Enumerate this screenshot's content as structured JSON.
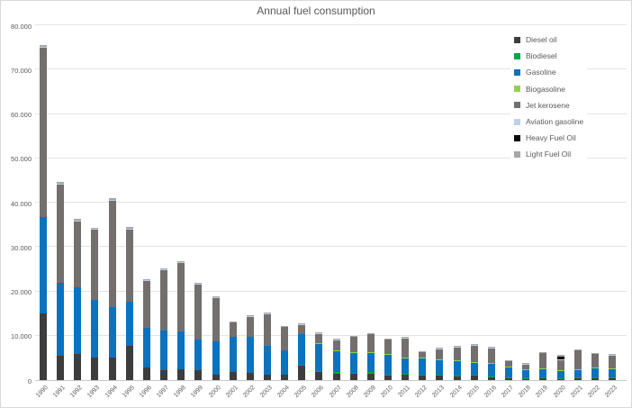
{
  "chart_data": {
    "type": "bar",
    "stacked": true,
    "title": "Annual fuel consumption",
    "xlabel": "",
    "ylabel": "",
    "ylim": [
      0,
      80000
    ],
    "grid": true,
    "legend_position": "top-right-inside",
    "yticks": [
      {
        "label": "0",
        "value": 0
      },
      {
        "label": "10.000",
        "value": 10000
      },
      {
        "label": "20.000",
        "value": 20000
      },
      {
        "label": "30.000",
        "value": 30000
      },
      {
        "label": "40.000",
        "value": 40000
      },
      {
        "label": "50.000",
        "value": 50000
      },
      {
        "label": "60.000",
        "value": 60000
      },
      {
        "label": "70.000",
        "value": 70000
      },
      {
        "label": "80.000",
        "value": 80000
      }
    ],
    "categories": [
      "1990",
      "1991",
      "1992",
      "1993",
      "1994",
      "1995",
      "1996",
      "1997",
      "1998",
      "1999",
      "2000",
      "2001",
      "2002",
      "2003",
      "2004",
      "2005",
      "2006",
      "2007",
      "2008",
      "2009",
      "2010",
      "2011",
      "2012",
      "2013",
      "2014",
      "2015",
      "2016",
      "2017",
      "2018",
      "2019",
      "2020",
      "2021",
      "2022",
      "2023"
    ],
    "series": [
      {
        "name": "Diesel oil",
        "color": "#3d3d3d",
        "values": [
          15000,
          5500,
          5800,
          5100,
          5000,
          7800,
          2800,
          2300,
          2400,
          2200,
          1300,
          1800,
          1700,
          1300,
          1300,
          3300,
          1800,
          1500,
          1400,
          1500,
          1000,
          1200,
          950,
          1000,
          850,
          1000,
          700,
          550,
          400,
          500,
          350,
          600,
          500,
          500
        ]
      },
      {
        "name": "Biodiesel",
        "color": "#00a845",
        "values": [
          0,
          0,
          0,
          0,
          0,
          0,
          0,
          0,
          0,
          0,
          0,
          0,
          0,
          0,
          0,
          200,
          300,
          300,
          300,
          300,
          300,
          200,
          200,
          200,
          200,
          200,
          200,
          150,
          100,
          100,
          100,
          100,
          100,
          100
        ]
      },
      {
        "name": "Gasoline",
        "color": "#0b72be",
        "values": [
          21800,
          16500,
          15200,
          12900,
          11400,
          9900,
          8900,
          8900,
          8600,
          6900,
          7500,
          7900,
          8000,
          6500,
          5400,
          6800,
          6100,
          4800,
          4300,
          4200,
          4400,
          3600,
          3900,
          3300,
          3200,
          2700,
          2800,
          2300,
          1900,
          1900,
          1650,
          1700,
          2000,
          1900
        ]
      },
      {
        "name": "Biogasoline",
        "color": "#92d050",
        "values": [
          0,
          0,
          0,
          0,
          0,
          0,
          0,
          0,
          0,
          0,
          0,
          0,
          0,
          0,
          0,
          0,
          100,
          100,
          200,
          200,
          200,
          100,
          100,
          100,
          150,
          100,
          150,
          100,
          100,
          150,
          100,
          100,
          150,
          150
        ]
      },
      {
        "name": "Jet kerosene",
        "color": "#736f6e",
        "values": [
          38200,
          22200,
          14900,
          16000,
          24200,
          16400,
          10700,
          13800,
          15500,
          12500,
          9900,
          3400,
          4700,
          7200,
          5400,
          2300,
          2300,
          2400,
          3700,
          4300,
          3300,
          4500,
          1300,
          2500,
          3100,
          3900,
          3500,
          1300,
          1200,
          3550,
          2400,
          4300,
          3250,
          2900
        ]
      },
      {
        "name": "Aviation gasoline",
        "color": "#bdd0e9",
        "values": [
          100,
          100,
          100,
          100,
          100,
          100,
          50,
          50,
          50,
          50,
          50,
          50,
          50,
          50,
          50,
          50,
          50,
          50,
          50,
          50,
          50,
          50,
          50,
          50,
          50,
          50,
          50,
          50,
          50,
          50,
          50,
          50,
          50,
          50
        ]
      },
      {
        "name": "Heavy Fuel Oil",
        "color": "#0a0a0a",
        "values": [
          0,
          0,
          0,
          0,
          0,
          0,
          0,
          0,
          0,
          0,
          0,
          0,
          0,
          0,
          0,
          0,
          0,
          0,
          0,
          0,
          0,
          0,
          0,
          0,
          0,
          0,
          0,
          0,
          0,
          0,
          600,
          0,
          0,
          200
        ]
      },
      {
        "name": "Light Fuel Oil",
        "color": "#a6a6a6",
        "values": [
          400,
          300,
          300,
          300,
          300,
          300,
          200,
          200,
          200,
          200,
          200,
          100,
          100,
          100,
          100,
          100,
          100,
          100,
          100,
          100,
          100,
          100,
          100,
          100,
          100,
          100,
          100,
          100,
          100,
          100,
          400,
          100,
          100,
          100
        ]
      }
    ]
  },
  "colors": {
    "title_text": "#595959",
    "axis_text": "#595959",
    "gridline": "#e2e2e2",
    "axis_line": "#c8c8c8",
    "chart_border": "#d9d9d9",
    "background": "#ffffff"
  }
}
